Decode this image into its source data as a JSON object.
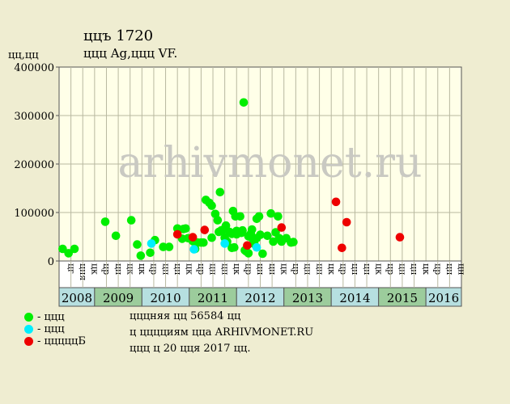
{
  "header": {
    "title": "ццъ 1720",
    "subtitle": "ццц Ag,ццц VF.",
    "y_unit": "цц,цц"
  },
  "watermark": "arhivmonet.ru",
  "colors": {
    "background": "#efedd1",
    "plot_background": "#ffffe8",
    "grid": "#b8b8a0",
    "year_band_a": "#b6dfe0",
    "year_band_b": "#9ccc9c",
    "series_green": "#00ee00",
    "series_cyan": "#00eeff",
    "series_red": "#ee0000",
    "watermark": "#c9c9c2"
  },
  "legend": [
    {
      "label": "- ццц",
      "color": "#00ee00"
    },
    {
      "label": "- ццц",
      "color": "#00eeff"
    },
    {
      "label": "- цццццБ",
      "color": "#ee0000"
    }
  ],
  "info": {
    "line1": "цццняя цц 56584 цц",
    "line2": "ц цццциям цца ARHIVMONET.RU",
    "line3": "ццц ц 20 цця 2017 цц."
  },
  "chart_data": {
    "type": "scatter",
    "ylim": [
      0,
      400000
    ],
    "yticks": [
      "0",
      "100000",
      "200000",
      "300000",
      "400000"
    ],
    "grid": true,
    "years": [
      {
        "label": "2008",
        "quarters": [
          "цг",
          "цня",
          "цк"
        ]
      },
      {
        "label": "2009",
        "quarters": [
          "цр",
          "цн",
          "цк",
          "цк"
        ]
      },
      {
        "label": "2010",
        "quarters": [
          "цр",
          "цн",
          "цн",
          "цк"
        ]
      },
      {
        "label": "2011",
        "quarters": [
          "цр",
          "цн",
          "цн",
          "цк"
        ]
      },
      {
        "label": "2012",
        "quarters": [
          "цр",
          "цн",
          "цн",
          "цк"
        ]
      },
      {
        "label": "2013",
        "quarters": [
          "цр",
          "цн",
          "цн",
          "цк"
        ]
      },
      {
        "label": "2014",
        "quarters": [
          "цр",
          "цн",
          "цн",
          "цк"
        ]
      },
      {
        "label": "2015",
        "quarters": [
          "цр",
          "цн",
          "цн",
          "цк"
        ]
      },
      {
        "label": "2016",
        "quarters": [
          "цр",
          "цн",
          "цн"
        ]
      }
    ],
    "series": [
      {
        "color": "#00ee00",
        "points": [
          [
            0.3,
            25000
          ],
          [
            0.8,
            16000
          ],
          [
            1.3,
            25000
          ],
          [
            3.9,
            81000
          ],
          [
            4.8,
            52000
          ],
          [
            6.1,
            84000
          ],
          [
            6.6,
            34000
          ],
          [
            6.9,
            11000
          ],
          [
            7.7,
            17000
          ],
          [
            8.1,
            43000
          ],
          [
            8.8,
            29000
          ],
          [
            9.3,
            29000
          ],
          [
            10.0,
            67000
          ],
          [
            10.4,
            46000
          ],
          [
            10.5,
            66000
          ],
          [
            10.7,
            67000
          ],
          [
            10.9,
            47000
          ],
          [
            11.3,
            41000
          ],
          [
            11.5,
            25000
          ],
          [
            11.7,
            38000
          ],
          [
            12.0,
            38000
          ],
          [
            12.2,
            38000
          ],
          [
            12.4,
            126000
          ],
          [
            12.7,
            120000
          ],
          [
            12.9,
            114000
          ],
          [
            12.9,
            48000
          ],
          [
            13.2,
            97000
          ],
          [
            13.4,
            84000
          ],
          [
            13.5,
            60000
          ],
          [
            13.6,
            142000
          ],
          [
            13.7,
            63000
          ],
          [
            13.9,
            65000
          ],
          [
            14.0,
            48000
          ],
          [
            14.1,
            73000
          ],
          [
            14.2,
            40000
          ],
          [
            14.4,
            60000
          ],
          [
            14.6,
            27000
          ],
          [
            14.6,
            56000
          ],
          [
            14.7,
            103000
          ],
          [
            14.8,
            28000
          ],
          [
            14.9,
            92000
          ],
          [
            15.0,
            55000
          ],
          [
            15.0,
            62000
          ],
          [
            15.2,
            60000
          ],
          [
            15.3,
            92000
          ],
          [
            15.4,
            58000
          ],
          [
            15.5,
            63000
          ],
          [
            15.6,
            327000
          ],
          [
            15.7,
            22000
          ],
          [
            15.8,
            20000
          ],
          [
            16.0,
            51000
          ],
          [
            16.0,
            16000
          ],
          [
            16.2,
            56000
          ],
          [
            16.3,
            65000
          ],
          [
            16.4,
            44000
          ],
          [
            16.5,
            35000
          ],
          [
            16.7,
            47000
          ],
          [
            16.7,
            87000
          ],
          [
            16.9,
            92000
          ],
          [
            17.0,
            54000
          ],
          [
            17.2,
            15000
          ],
          [
            17.6,
            52000
          ],
          [
            17.9,
            98000
          ],
          [
            18.1,
            40000
          ],
          [
            18.3,
            59000
          ],
          [
            18.5,
            92000
          ],
          [
            18.6,
            47000
          ],
          [
            18.8,
            40000
          ],
          [
            19.2,
            47000
          ],
          [
            19.6,
            38000
          ],
          [
            19.8,
            39000
          ]
        ]
      },
      {
        "color": "#00eeff",
        "points": [
          [
            7.8,
            36000
          ],
          [
            11.4,
            24000
          ],
          [
            14.0,
            36000
          ],
          [
            16.7,
            28000
          ]
        ]
      },
      {
        "color": "#ee0000",
        "points": [
          [
            10.0,
            55000
          ],
          [
            11.3,
            49000
          ],
          [
            12.3,
            64000
          ],
          [
            15.9,
            32000
          ],
          [
            18.8,
            69000
          ],
          [
            23.4,
            122000
          ],
          [
            23.9,
            27000
          ],
          [
            24.3,
            80000
          ],
          [
            28.8,
            49000
          ]
        ]
      }
    ]
  }
}
